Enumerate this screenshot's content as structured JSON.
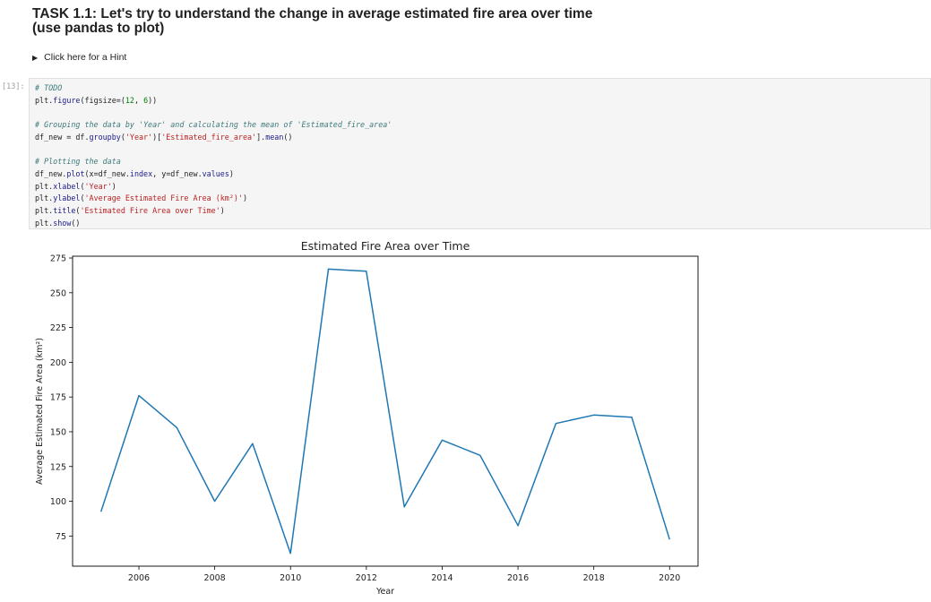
{
  "markdown": {
    "title_line1": "TASK 1.1: Let's try to understand the change in average estimated fire area over time",
    "title_line2": "(use pandas to plot)",
    "hint_label": "Click here for a Hint"
  },
  "code_cell": {
    "prompt": "[13]:",
    "lines": [
      [
        {
          "t": "# TODO",
          "c": "cm"
        }
      ],
      [
        {
          "t": "plt",
          "c": "ink"
        },
        {
          "t": ".",
          "c": "ink"
        },
        {
          "t": "figure",
          "c": "nm"
        },
        {
          "t": "(figsize=(",
          "c": "ink"
        },
        {
          "t": "12",
          "c": "nu"
        },
        {
          "t": ", ",
          "c": "ink"
        },
        {
          "t": "6",
          "c": "nu"
        },
        {
          "t": "))",
          "c": "ink"
        }
      ],
      [],
      [
        {
          "t": "# Grouping the data by 'Year' and calculating the mean of 'Estimated_fire_area'",
          "c": "cm"
        }
      ],
      [
        {
          "t": "df_new = df",
          "c": "ink"
        },
        {
          "t": ".",
          "c": "ink"
        },
        {
          "t": "groupby",
          "c": "nm"
        },
        {
          "t": "(",
          "c": "ink"
        },
        {
          "t": "'Year'",
          "c": "st"
        },
        {
          "t": ")[",
          "c": "ink"
        },
        {
          "t": "'Estimated_fire_area'",
          "c": "st"
        },
        {
          "t": "]",
          "c": "ink"
        },
        {
          "t": ".",
          "c": "ink"
        },
        {
          "t": "mean",
          "c": "nm"
        },
        {
          "t": "()",
          "c": "ink"
        }
      ],
      [],
      [
        {
          "t": "# Plotting the data",
          "c": "cm"
        }
      ],
      [
        {
          "t": "df_new",
          "c": "ink"
        },
        {
          "t": ".",
          "c": "ink"
        },
        {
          "t": "plot",
          "c": "nm"
        },
        {
          "t": "(x=df_new",
          "c": "ink"
        },
        {
          "t": ".",
          "c": "ink"
        },
        {
          "t": "index",
          "c": "nm"
        },
        {
          "t": ", y=df_new",
          "c": "ink"
        },
        {
          "t": ".",
          "c": "ink"
        },
        {
          "t": "values",
          "c": "nm"
        },
        {
          "t": ")",
          "c": "ink"
        }
      ],
      [
        {
          "t": "plt",
          "c": "ink"
        },
        {
          "t": ".",
          "c": "ink"
        },
        {
          "t": "xlabel",
          "c": "nm"
        },
        {
          "t": "(",
          "c": "ink"
        },
        {
          "t": "'Year'",
          "c": "st"
        },
        {
          "t": ")",
          "c": "ink"
        }
      ],
      [
        {
          "t": "plt",
          "c": "ink"
        },
        {
          "t": ".",
          "c": "ink"
        },
        {
          "t": "ylabel",
          "c": "nm"
        },
        {
          "t": "(",
          "c": "ink"
        },
        {
          "t": "'Average Estimated Fire Area (km²)'",
          "c": "st"
        },
        {
          "t": ")",
          "c": "ink"
        }
      ],
      [
        {
          "t": "plt",
          "c": "ink"
        },
        {
          "t": ".",
          "c": "ink"
        },
        {
          "t": "title",
          "c": "nm"
        },
        {
          "t": "(",
          "c": "ink"
        },
        {
          "t": "'Estimated Fire Area over Time'",
          "c": "st"
        },
        {
          "t": ")",
          "c": "ink"
        }
      ],
      [
        {
          "t": "plt",
          "c": "ink"
        },
        {
          "t": ".",
          "c": "ink"
        },
        {
          "t": "show",
          "c": "nm"
        },
        {
          "t": "()",
          "c": "ink"
        }
      ]
    ]
  },
  "chart_data": {
    "type": "line",
    "title": "Estimated Fire Area over Time",
    "xlabel": "Year",
    "ylabel": "Average Estimated Fire Area (km²)",
    "x": [
      2005,
      2006,
      2007,
      2008,
      2009,
      2010,
      2011,
      2012,
      2013,
      2014,
      2015,
      2016,
      2017,
      2018,
      2019,
      2020
    ],
    "series": [
      {
        "values": [
          92.5,
          176,
          153,
          100,
          141.5,
          62.5,
          267,
          265.5,
          96,
          144,
          133,
          82.5,
          156,
          162,
          160.5,
          72.5
        ],
        "color": "#1f77b4"
      }
    ],
    "xlim": [
      2004.25,
      2020.75
    ],
    "ylim": [
      53.3,
      276.3
    ],
    "xticks": [
      2006,
      2008,
      2010,
      2012,
      2014,
      2016,
      2018,
      2020
    ],
    "yticks": [
      75,
      100,
      125,
      150,
      175,
      200,
      225,
      250,
      275
    ],
    "grid": false,
    "legend": "none"
  }
}
